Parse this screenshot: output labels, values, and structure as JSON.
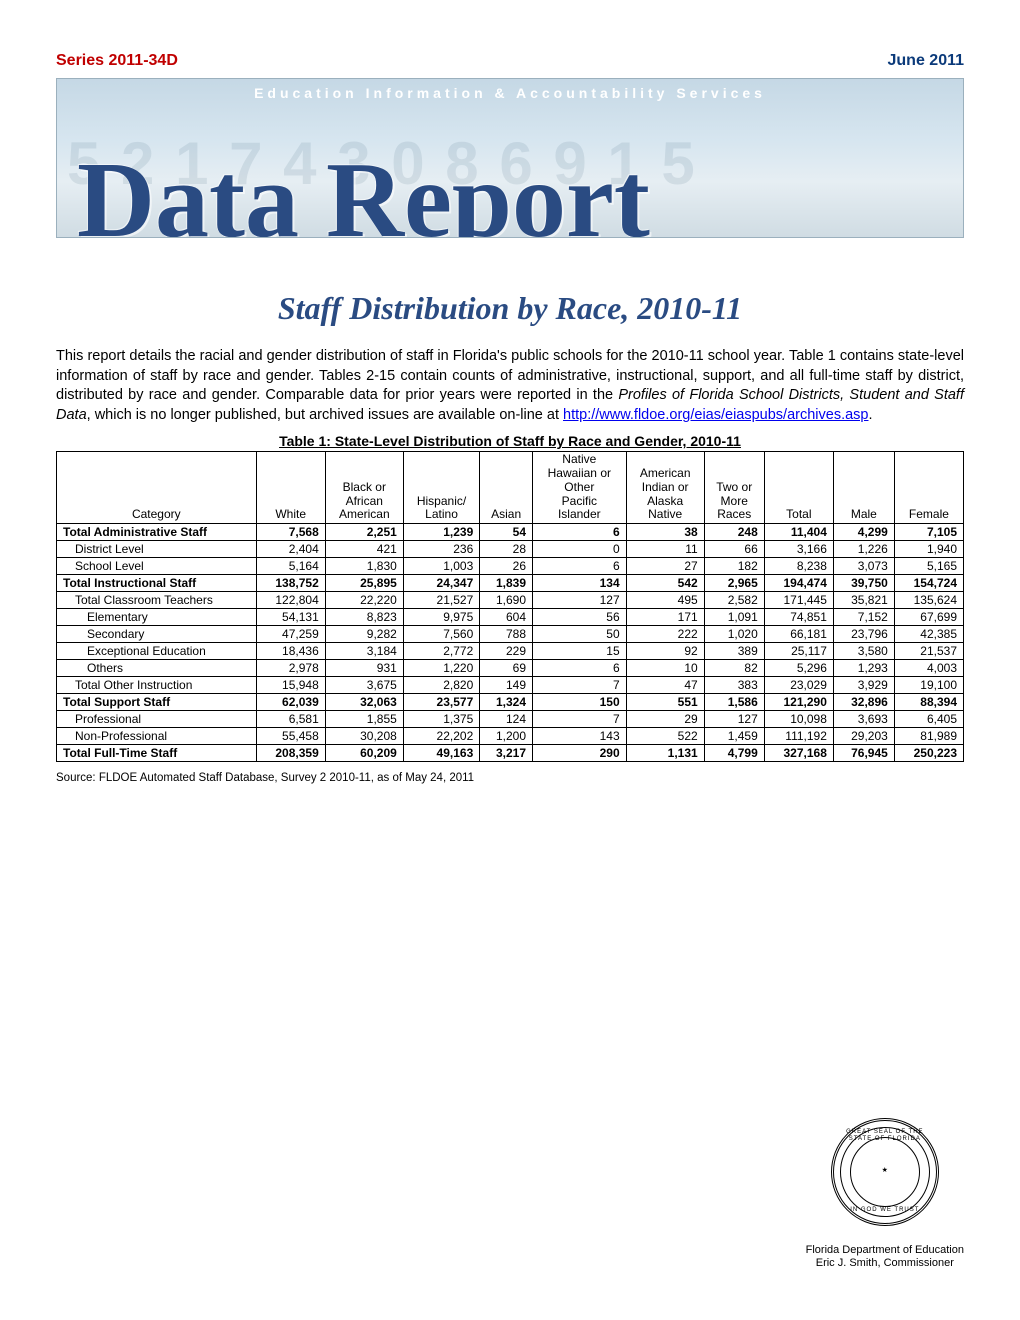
{
  "header": {
    "series": "Series 2011-34D",
    "date": "June 2011"
  },
  "banner": {
    "top_line": "Education Information & Accountability Services",
    "title": "Data Report",
    "bg_numbers": "5 2 1 7 4 3 0 8 6 9 1 5"
  },
  "report_title": "Staff Distribution by Race, 2010-11",
  "intro": {
    "text_before_ref": "This report details the racial and gender distribution of staff in Florida's public schools for the 2010-11 school year. Table 1 contains state-level information of staff by race and gender. Tables 2-15 contain counts of administrative, instructional, support, and all full-time staff by district, distributed by race and gender. Comparable data for prior years were reported in the ",
    "profiles_ref": "Profiles of Florida School Districts, Student and Staff Data",
    "text_after_ref": ", which is no longer published, but archived issues are available on-line at ",
    "link_text": "http://www.fldoe.org/eias/eiaspubs/archives.asp",
    "period": "."
  },
  "table": {
    "caption": "Table 1: State-Level Distribution of Staff by Race and Gender, 2010-11",
    "columns": [
      "Category",
      "White",
      "Black or\nAfrican\nAmerican",
      "Hispanic/\nLatino",
      "Asian",
      "Native\nHawaiian or\nOther\nPacific\nIslander",
      "American\nIndian or\nAlaska\nNative",
      "Two or\nMore\nRaces",
      "Total",
      "Male",
      "Female"
    ],
    "rows": [
      {
        "bold": true,
        "indent": 0,
        "cells": [
          "Total Administrative Staff",
          "7,568",
          "2,251",
          "1,239",
          "54",
          "6",
          "38",
          "248",
          "11,404",
          "4,299",
          "7,105"
        ]
      },
      {
        "bold": false,
        "indent": 1,
        "cells": [
          "District Level",
          "2,404",
          "421",
          "236",
          "28",
          "0",
          "11",
          "66",
          "3,166",
          "1,226",
          "1,940"
        ]
      },
      {
        "bold": false,
        "indent": 1,
        "cells": [
          "School Level",
          "5,164",
          "1,830",
          "1,003",
          "26",
          "6",
          "27",
          "182",
          "8,238",
          "3,073",
          "5,165"
        ]
      },
      {
        "bold": true,
        "indent": 0,
        "cells": [
          "Total Instructional Staff",
          "138,752",
          "25,895",
          "24,347",
          "1,839",
          "134",
          "542",
          "2,965",
          "194,474",
          "39,750",
          "154,724"
        ]
      },
      {
        "bold": false,
        "indent": 1,
        "cells": [
          "Total Classroom Teachers",
          "122,804",
          "22,220",
          "21,527",
          "1,690",
          "127",
          "495",
          "2,582",
          "171,445",
          "35,821",
          "135,624"
        ]
      },
      {
        "bold": false,
        "indent": 2,
        "cells": [
          "Elementary",
          "54,131",
          "8,823",
          "9,975",
          "604",
          "56",
          "171",
          "1,091",
          "74,851",
          "7,152",
          "67,699"
        ]
      },
      {
        "bold": false,
        "indent": 2,
        "cells": [
          "Secondary",
          "47,259",
          "9,282",
          "7,560",
          "788",
          "50",
          "222",
          "1,020",
          "66,181",
          "23,796",
          "42,385"
        ]
      },
      {
        "bold": false,
        "indent": 2,
        "cells": [
          "Exceptional Education",
          "18,436",
          "3,184",
          "2,772",
          "229",
          "15",
          "92",
          "389",
          "25,117",
          "3,580",
          "21,537"
        ]
      },
      {
        "bold": false,
        "indent": 2,
        "cells": [
          "Others",
          "2,978",
          "931",
          "1,220",
          "69",
          "6",
          "10",
          "82",
          "5,296",
          "1,293",
          "4,003"
        ]
      },
      {
        "bold": false,
        "indent": 1,
        "cells": [
          "Total Other Instruction",
          "15,948",
          "3,675",
          "2,820",
          "149",
          "7",
          "47",
          "383",
          "23,029",
          "3,929",
          "19,100"
        ]
      },
      {
        "bold": true,
        "indent": 0,
        "cells": [
          "Total Support Staff",
          "62,039",
          "32,063",
          "23,577",
          "1,324",
          "150",
          "551",
          "1,586",
          "121,290",
          "32,896",
          "88,394"
        ]
      },
      {
        "bold": false,
        "indent": 1,
        "cells": [
          "Professional",
          "6,581",
          "1,855",
          "1,375",
          "124",
          "7",
          "29",
          "127",
          "10,098",
          "3,693",
          "6,405"
        ]
      },
      {
        "bold": false,
        "indent": 1,
        "cells": [
          "Non-Professional",
          "55,458",
          "30,208",
          "22,202",
          "1,200",
          "143",
          "522",
          "1,459",
          "111,192",
          "29,203",
          "81,989"
        ]
      },
      {
        "bold": true,
        "indent": 0,
        "cells": [
          "Total Full-Time Staff",
          "208,359",
          "60,209",
          "49,163",
          "3,217",
          "290",
          "1,131",
          "4,799",
          "327,168",
          "76,945",
          "250,223"
        ]
      }
    ],
    "source": "Source: FLDOE Automated Staff Database, Survey 2 2010-11, as of May 24, 2011"
  },
  "seal": {
    "top": "GREAT SEAL OF THE STATE OF FLORIDA",
    "bottom": "IN GOD WE TRUST"
  },
  "footer": {
    "line1": "Florida Department of Education",
    "line2": "Eric J. Smith, Commissioner"
  },
  "colors": {
    "series_color": "#c00000",
    "date_color": "#0b3a7a",
    "banner_title_color": "#2a4b82",
    "link_color": "#0000ee"
  }
}
